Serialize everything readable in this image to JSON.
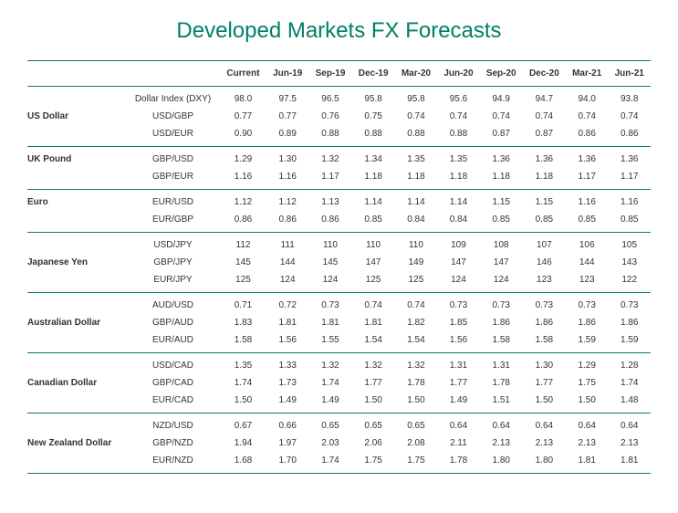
{
  "title": "Developed Markets FX Forecasts",
  "colors": {
    "accent": "#008066",
    "text": "#333333",
    "background": "#ffffff"
  },
  "columns": [
    "Current",
    "Jun-19",
    "Sep-19",
    "Dec-19",
    "Mar-20",
    "Jun-20",
    "Sep-20",
    "Dec-20",
    "Mar-21",
    "Jun-21"
  ],
  "groups": [
    {
      "name": "US Dollar",
      "rows": [
        {
          "pair": "Dollar Index (DXY)",
          "v": [
            "98.0",
            "97.5",
            "96.5",
            "95.8",
            "95.8",
            "95.6",
            "94.9",
            "94.7",
            "94.0",
            "93.8"
          ]
        },
        {
          "pair": "USD/GBP",
          "v": [
            "0.77",
            "0.77",
            "0.76",
            "0.75",
            "0.74",
            "0.74",
            "0.74",
            "0.74",
            "0.74",
            "0.74"
          ]
        },
        {
          "pair": "USD/EUR",
          "v": [
            "0.90",
            "0.89",
            "0.88",
            "0.88",
            "0.88",
            "0.88",
            "0.87",
            "0.87",
            "0.86",
            "0.86"
          ]
        }
      ]
    },
    {
      "name": "UK Pound",
      "rows": [
        {
          "pair": "GBP/USD",
          "v": [
            "1.29",
            "1.30",
            "1.32",
            "1.34",
            "1.35",
            "1.35",
            "1.36",
            "1.36",
            "1.36",
            "1.36"
          ]
        },
        {
          "pair": "GBP/EUR",
          "v": [
            "1.16",
            "1.16",
            "1.17",
            "1.18",
            "1.18",
            "1.18",
            "1.18",
            "1.18",
            "1.17",
            "1.17"
          ]
        }
      ]
    },
    {
      "name": "Euro",
      "rows": [
        {
          "pair": "EUR/USD",
          "v": [
            "1.12",
            "1.12",
            "1.13",
            "1.14",
            "1.14",
            "1.14",
            "1.15",
            "1.15",
            "1.16",
            "1.16"
          ]
        },
        {
          "pair": "EUR/GBP",
          "v": [
            "0.86",
            "0.86",
            "0.86",
            "0.85",
            "0.84",
            "0.84",
            "0.85",
            "0.85",
            "0.85",
            "0.85"
          ]
        }
      ]
    },
    {
      "name": "Japanese Yen",
      "rows": [
        {
          "pair": "USD/JPY",
          "v": [
            "112",
            "111",
            "110",
            "110",
            "110",
            "109",
            "108",
            "107",
            "106",
            "105"
          ]
        },
        {
          "pair": "GBP/JPY",
          "v": [
            "145",
            "144",
            "145",
            "147",
            "149",
            "147",
            "147",
            "146",
            "144",
            "143"
          ]
        },
        {
          "pair": "EUR/JPY",
          "v": [
            "125",
            "124",
            "124",
            "125",
            "125",
            "124",
            "124",
            "123",
            "123",
            "122"
          ]
        }
      ]
    },
    {
      "name": "Australian Dollar",
      "rows": [
        {
          "pair": "AUD/USD",
          "v": [
            "0.71",
            "0.72",
            "0.73",
            "0.74",
            "0.74",
            "0.73",
            "0.73",
            "0.73",
            "0.73",
            "0.73"
          ]
        },
        {
          "pair": "GBP/AUD",
          "v": [
            "1.83",
            "1.81",
            "1.81",
            "1.81",
            "1.82",
            "1.85",
            "1.86",
            "1.86",
            "1.86",
            "1.86"
          ]
        },
        {
          "pair": "EUR/AUD",
          "v": [
            "1.58",
            "1.56",
            "1.55",
            "1.54",
            "1.54",
            "1.56",
            "1.58",
            "1.58",
            "1.59",
            "1.59"
          ]
        }
      ]
    },
    {
      "name": "Canadian Dollar",
      "rows": [
        {
          "pair": "USD/CAD",
          "v": [
            "1.35",
            "1.33",
            "1.32",
            "1.32",
            "1.32",
            "1.31",
            "1.31",
            "1.30",
            "1.29",
            "1.28"
          ]
        },
        {
          "pair": "GBP/CAD",
          "v": [
            "1.74",
            "1.73",
            "1.74",
            "1.77",
            "1.78",
            "1.77",
            "1.78",
            "1.77",
            "1.75",
            "1.74"
          ]
        },
        {
          "pair": "EUR/CAD",
          "v": [
            "1.50",
            "1.49",
            "1.49",
            "1.50",
            "1.50",
            "1.49",
            "1.51",
            "1.50",
            "1.50",
            "1.48"
          ]
        }
      ]
    },
    {
      "name": "New Zealand Dollar",
      "rows": [
        {
          "pair": "NZD/USD",
          "v": [
            "0.67",
            "0.66",
            "0.65",
            "0.65",
            "0.65",
            "0.64",
            "0.64",
            "0.64",
            "0.64",
            "0.64"
          ]
        },
        {
          "pair": "GBP/NZD",
          "v": [
            "1.94",
            "1.97",
            "2.03",
            "2.06",
            "2.08",
            "2.11",
            "2.13",
            "2.13",
            "2.13",
            "2.13"
          ]
        },
        {
          "pair": "EUR/NZD",
          "v": [
            "1.68",
            "1.70",
            "1.74",
            "1.75",
            "1.75",
            "1.78",
            "1.80",
            "1.80",
            "1.81",
            "1.81"
          ]
        }
      ]
    }
  ]
}
